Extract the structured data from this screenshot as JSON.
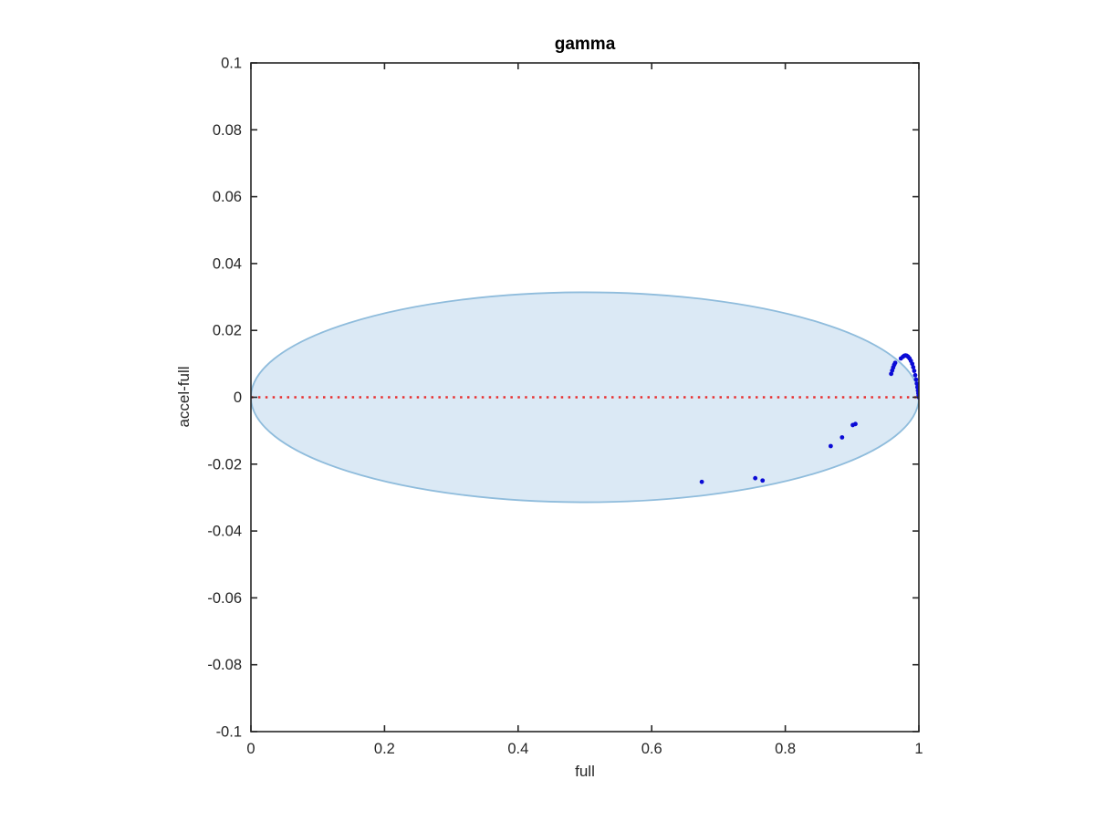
{
  "chart_data": {
    "type": "scatter",
    "title": "gamma",
    "xlabel": "full",
    "ylabel": "accel-full",
    "xlim": [
      0,
      1
    ],
    "ylim": [
      -0.1,
      0.1
    ],
    "grid": false,
    "box": true,
    "tick_direction": "in",
    "axis_color": "#262626",
    "background_color": "#ffffff",
    "xticks": [
      {
        "value": 0,
        "label": "0"
      },
      {
        "value": 0.2,
        "label": "0.2"
      },
      {
        "value": 0.4,
        "label": "0.4"
      },
      {
        "value": 0.6,
        "label": "0.6"
      },
      {
        "value": 0.8,
        "label": "0.8"
      },
      {
        "value": 1,
        "label": "1"
      }
    ],
    "yticks": [
      {
        "value": 0.1,
        "label": "0.1"
      },
      {
        "value": 0.08,
        "label": "0.08"
      },
      {
        "value": 0.06,
        "label": "0.06"
      },
      {
        "value": 0.04,
        "label": "0.04"
      },
      {
        "value": 0.02,
        "label": "0.02"
      },
      {
        "value": 0,
        "label": "0"
      },
      {
        "value": -0.02,
        "label": "-0.02"
      },
      {
        "value": -0.04,
        "label": "-0.04"
      },
      {
        "value": -0.06,
        "label": "-0.06"
      },
      {
        "value": -0.08,
        "label": "-0.08"
      },
      {
        "value": -0.1,
        "label": "-0.1"
      }
    ],
    "reference_ellipse": {
      "cx": 0.5,
      "cy": 0,
      "rx": 0.5,
      "ry": 0.0314,
      "fill_color": "#dbe9f5",
      "edge_color": "#8fbcdc"
    },
    "zero_line": {
      "y": 0,
      "color": "#e83030",
      "style": "dotted"
    },
    "series": [
      {
        "name": "gamma parameter points",
        "marker": "point",
        "color": "#0b0bd6",
        "marker_radius": 2.4,
        "points": [
          [
            0.675,
            -0.0253
          ],
          [
            0.755,
            -0.0242
          ],
          [
            0.766,
            -0.0249
          ],
          [
            0.868,
            -0.0146
          ],
          [
            0.885,
            -0.012
          ],
          [
            0.901,
            -0.0083
          ],
          [
            0.905,
            -0.008
          ],
          [
            0.9585,
            0.007
          ],
          [
            0.96,
            0.008
          ],
          [
            0.9615,
            0.0089
          ],
          [
            0.963,
            0.0097
          ],
          [
            0.9645,
            0.0103
          ],
          [
            0.973,
            0.0116
          ],
          [
            0.976,
            0.0121
          ],
          [
            0.978,
            0.0124
          ],
          [
            0.98,
            0.0125
          ],
          [
            0.982,
            0.0124
          ],
          [
            0.984,
            0.0121
          ],
          [
            0.986,
            0.0116
          ],
          [
            0.988,
            0.0109
          ],
          [
            0.99,
            0.01
          ],
          [
            0.9915,
            0.009
          ],
          [
            0.993,
            0.0079
          ],
          [
            0.9945,
            0.0066
          ],
          [
            0.9958,
            0.0053
          ],
          [
            0.9969,
            0.0041
          ],
          [
            0.9978,
            0.003
          ],
          [
            0.9986,
            0.002
          ],
          [
            0.9992,
            0.0012
          ],
          [
            0.9996,
            0.0006
          ],
          [
            0.9999,
            0.0002
          ],
          [
            1.0,
            0.0
          ]
        ]
      }
    ]
  }
}
